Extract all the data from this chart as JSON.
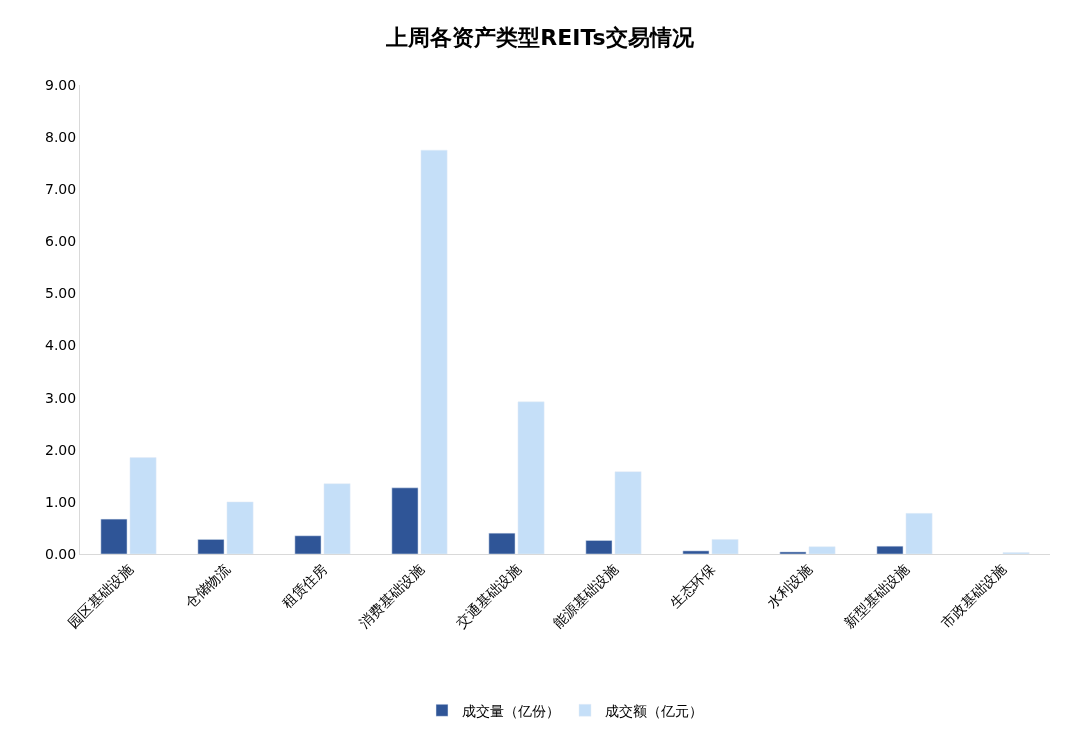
{
  "chart_data": {
    "type": "bar",
    "title": "上周各资产类型REITs交易情况",
    "categories": [
      "园区基础设施",
      "仓储物流",
      "租赁住房",
      "消费基础设施",
      "交通基础设施",
      "能源基础设施",
      "生态环保",
      "水利设施",
      "新型基础设施",
      "市政基础设施"
    ],
    "series": [
      {
        "name": "成交量（亿份）",
        "color": "#2f5597",
        "values": [
          0.67,
          0.28,
          0.35,
          1.27,
          0.4,
          0.26,
          0.06,
          0.04,
          0.15,
          null
        ]
      },
      {
        "name": "成交额（亿元）",
        "color": "#c5dff8",
        "values": [
          1.85,
          1.0,
          1.35,
          7.75,
          2.92,
          1.58,
          0.28,
          0.14,
          0.78,
          0.03
        ]
      }
    ],
    "ylim": [
      0,
      9
    ],
    "yticks": [
      {
        "value": 0,
        "label": "0.00"
      },
      {
        "value": 1,
        "label": "1.00"
      },
      {
        "value": 2,
        "label": "2.00"
      },
      {
        "value": 3,
        "label": "3.00"
      },
      {
        "value": 4,
        "label": "4.00"
      },
      {
        "value": 5,
        "label": "5.00"
      },
      {
        "value": 6,
        "label": "6.00"
      },
      {
        "value": 7,
        "label": "7.00"
      },
      {
        "value": 8,
        "label": "8.00"
      },
      {
        "value": 9,
        "label": "9.00"
      }
    ],
    "grid": false,
    "legend": "bottom"
  }
}
